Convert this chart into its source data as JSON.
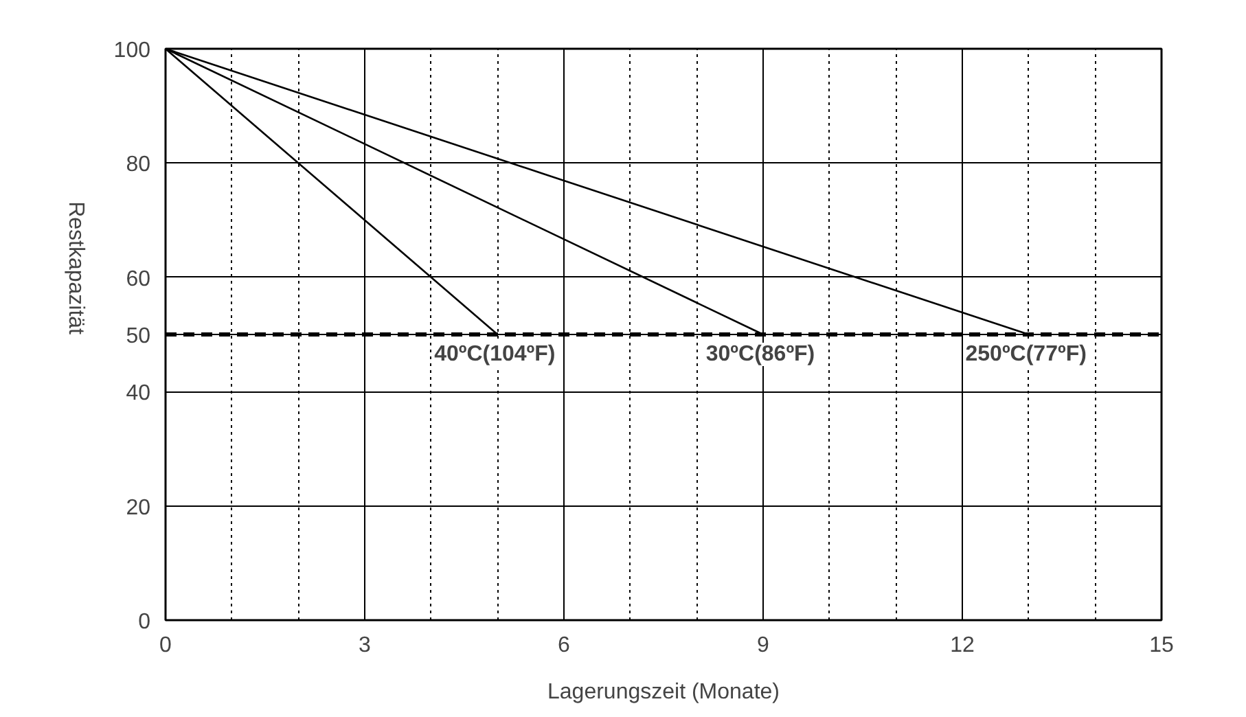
{
  "chart_data": {
    "type": "line",
    "xlabel": "Lagerungszeit (Monate)",
    "ylabel": "Restkapazität",
    "xlim": [
      0,
      15
    ],
    "ylim": [
      0,
      100
    ],
    "xticks": [
      0,
      3,
      6,
      9,
      12,
      15
    ],
    "yticks": [
      0,
      20,
      40,
      50,
      60,
      80,
      100
    ],
    "grid": true,
    "marker": "none",
    "line_style": "solid",
    "series": [
      {
        "name": "40ºC(104ºF)",
        "color": "#000000",
        "x": [
          0,
          5
        ],
        "values": [
          100,
          50
        ]
      },
      {
        "name": "30ºC(86ºF)",
        "color": "#000000",
        "x": [
          0,
          9
        ],
        "values": [
          100,
          50
        ]
      },
      {
        "name": "250ºC(77ºF)",
        "color": "#000000",
        "x": [
          0,
          13
        ],
        "values": [
          100,
          50
        ]
      }
    ],
    "ref_lines": [
      {
        "axis": "y",
        "value": 50,
        "label": null,
        "color": "#000000",
        "line_style": "dashed"
      }
    ]
  }
}
